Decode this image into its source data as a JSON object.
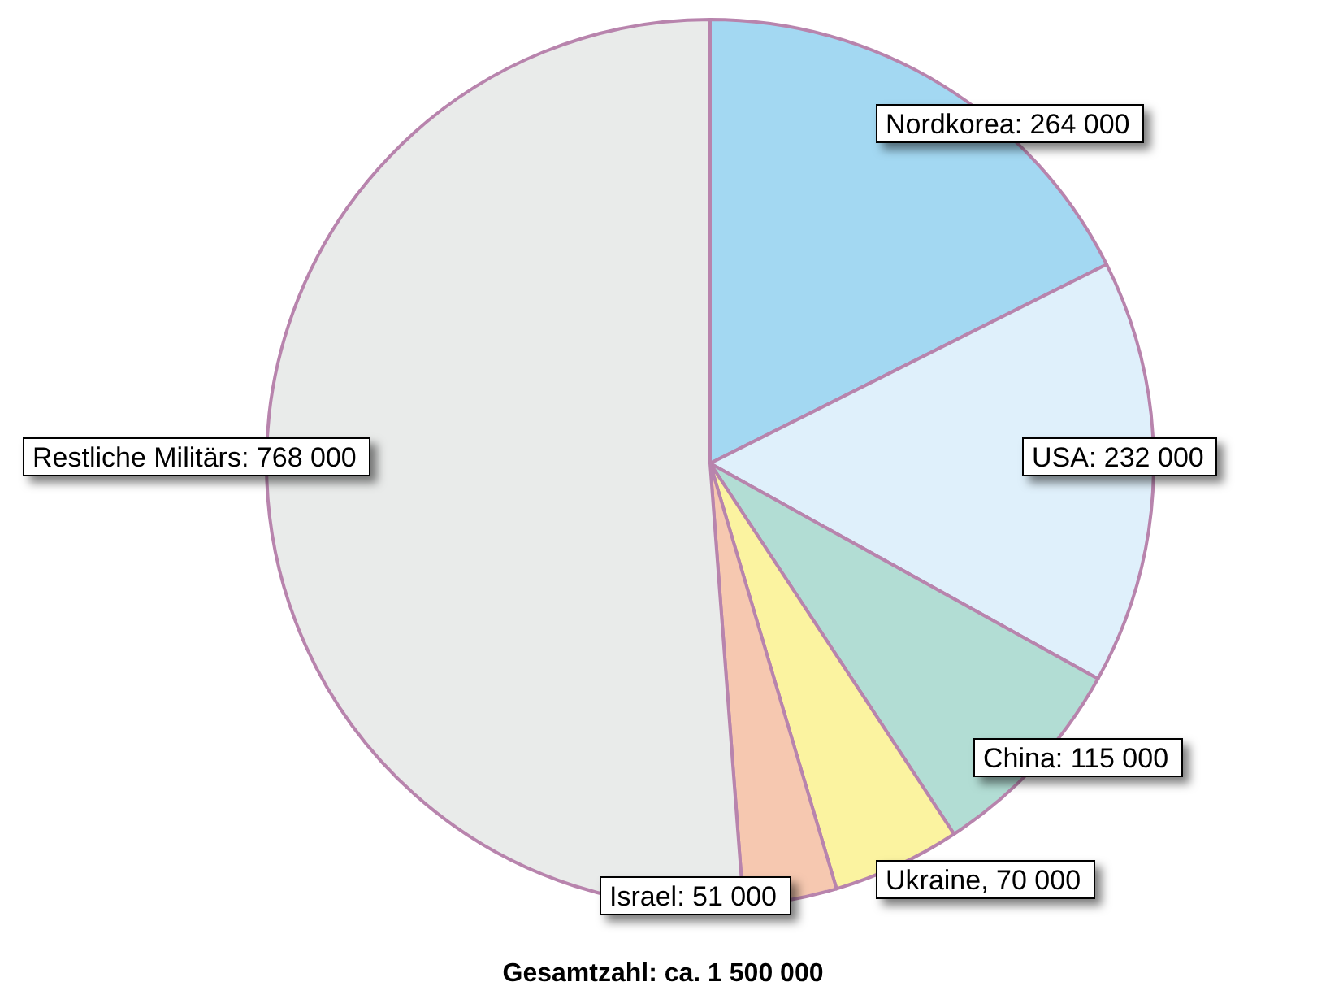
{
  "chart_data": {
    "type": "pie",
    "categories": [
      "Nordkorea",
      "USA",
      "China",
      "Ukraine",
      "Israel",
      "Restliche Militärs"
    ],
    "values": [
      264000,
      232000,
      115000,
      70000,
      51000,
      768000
    ],
    "colors": [
      "#a3d8f2",
      "#dff0fb",
      "#b2ddd4",
      "#fbf3a0",
      "#f6c8b0",
      "#e9ebea"
    ],
    "value_labels": [
      ": 264 000",
      ": 232 000",
      ": 115 000",
      ", 70 000",
      ": 51 000",
      ": 768 000"
    ],
    "annotations": [
      "Gesamtzahl: ca. 1 500 000"
    ],
    "legend": false
  }
}
